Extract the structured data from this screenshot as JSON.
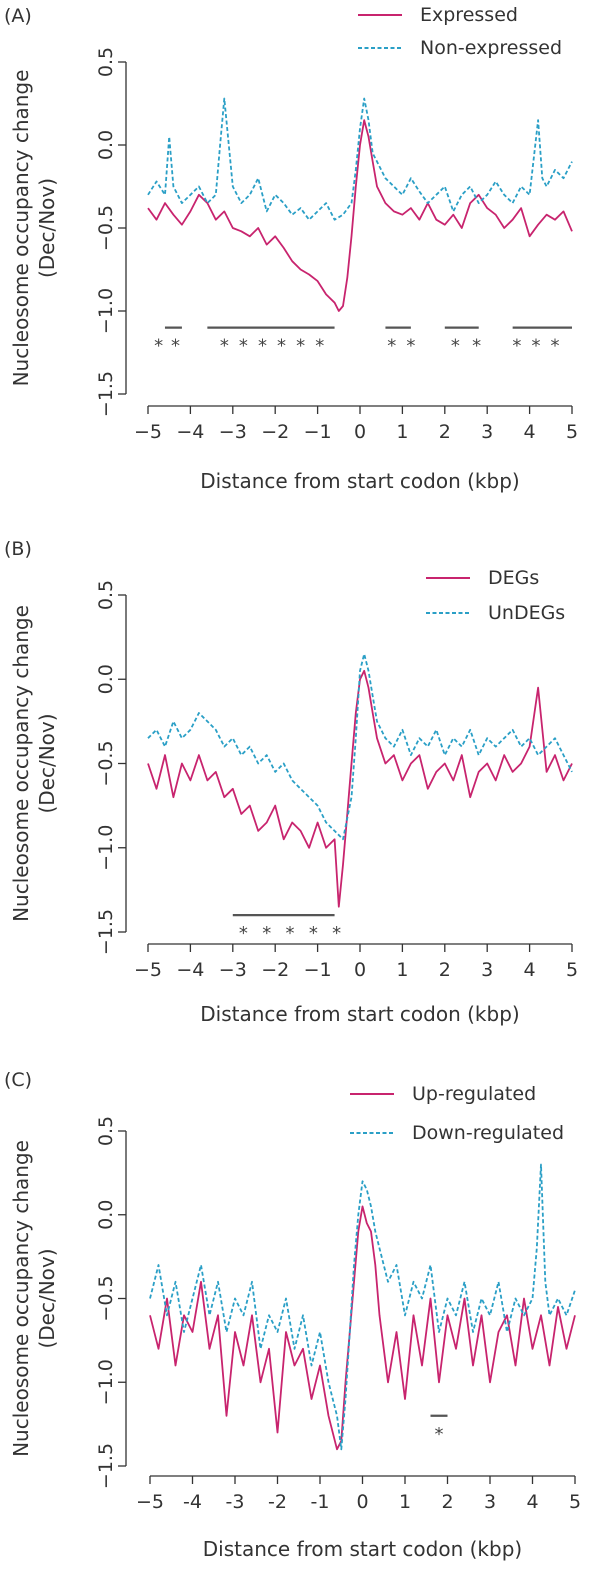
{
  "colors": {
    "pink": "#c8246e",
    "blue": "#2a9fc6",
    "ink": "#333333",
    "sig": "#555555"
  },
  "chart_data": [
    {
      "type": "line",
      "panel_label": "(A)",
      "ylabel_line1": "Nucleosome occupancy change",
      "ylabel_line2": "(Dec/Nov)",
      "xlabel": "Distance from start codon (kbp)",
      "xlim": [
        -5,
        5
      ],
      "ylim": [
        -1.5,
        0.5
      ],
      "xticks": [
        -5,
        -4,
        -3,
        -2,
        -1,
        0,
        1,
        2,
        3,
        4,
        5
      ],
      "xtick_labels": [
        "−5",
        "−4",
        "−3",
        "−2",
        "−1",
        "0",
        "1",
        "2",
        "3",
        "4",
        "5"
      ],
      "yticks": [
        -1.5,
        -1.0,
        -0.5,
        0.0,
        0.5
      ],
      "ytick_labels": [
        "−1.5",
        "−1.0",
        "−0.5",
        "0.0",
        "0.5"
      ],
      "series": [
        {
          "name": "Expressed",
          "style": "solid",
          "color": "#c8246e",
          "x": [
            -5,
            -4.8,
            -4.6,
            -4.4,
            -4.2,
            -4,
            -3.8,
            -3.6,
            -3.4,
            -3.2,
            -3,
            -2.8,
            -2.6,
            -2.4,
            -2.2,
            -2,
            -1.8,
            -1.6,
            -1.4,
            -1.2,
            -1,
            -0.8,
            -0.6,
            -0.5,
            -0.4,
            -0.3,
            -0.2,
            -0.1,
            0,
            0.1,
            0.2,
            0.3,
            0.4,
            0.6,
            0.8,
            1,
            1.2,
            1.4,
            1.6,
            1.8,
            2,
            2.2,
            2.4,
            2.6,
            2.8,
            3,
            3.2,
            3.4,
            3.6,
            3.8,
            4,
            4.2,
            4.4,
            4.6,
            4.8,
            5
          ],
          "y": [
            -0.38,
            -0.45,
            -0.35,
            -0.42,
            -0.48,
            -0.4,
            -0.3,
            -0.35,
            -0.45,
            -0.4,
            -0.5,
            -0.52,
            -0.55,
            -0.5,
            -0.6,
            -0.55,
            -0.62,
            -0.7,
            -0.75,
            -0.78,
            -0.82,
            -0.9,
            -0.95,
            -1.0,
            -0.97,
            -0.8,
            -0.55,
            -0.25,
            0.0,
            0.15,
            0.05,
            -0.1,
            -0.25,
            -0.35,
            -0.4,
            -0.42,
            -0.38,
            -0.45,
            -0.35,
            -0.45,
            -0.48,
            -0.42,
            -0.5,
            -0.35,
            -0.3,
            -0.38,
            -0.42,
            -0.5,
            -0.45,
            -0.38,
            -0.55,
            -0.48,
            -0.42,
            -0.45,
            -0.4,
            -0.52
          ]
        },
        {
          "name": "Non-expressed",
          "style": "dashed",
          "color": "#2a9fc6",
          "x": [
            -5,
            -4.8,
            -4.6,
            -4.5,
            -4.4,
            -4.2,
            -4,
            -3.8,
            -3.6,
            -3.4,
            -3.3,
            -3.2,
            -3,
            -2.8,
            -2.6,
            -2.4,
            -2.2,
            -2,
            -1.8,
            -1.6,
            -1.4,
            -1.2,
            -1,
            -0.8,
            -0.6,
            -0.4,
            -0.2,
            -0.1,
            0,
            0.1,
            0.2,
            0.3,
            0.4,
            0.6,
            0.8,
            1,
            1.2,
            1.4,
            1.6,
            1.8,
            2,
            2.2,
            2.4,
            2.6,
            2.8,
            3,
            3.2,
            3.4,
            3.6,
            3.8,
            4,
            4.2,
            4.3,
            4.4,
            4.6,
            4.8,
            5
          ],
          "y": [
            -0.3,
            -0.22,
            -0.3,
            0.05,
            -0.25,
            -0.35,
            -0.3,
            -0.25,
            -0.35,
            -0.3,
            0.0,
            0.28,
            -0.25,
            -0.35,
            -0.3,
            -0.2,
            -0.4,
            -0.3,
            -0.35,
            -0.42,
            -0.38,
            -0.45,
            -0.4,
            -0.35,
            -0.45,
            -0.42,
            -0.35,
            -0.15,
            0.1,
            0.28,
            0.15,
            -0.05,
            -0.1,
            -0.2,
            -0.25,
            -0.3,
            -0.2,
            -0.28,
            -0.35,
            -0.3,
            -0.25,
            -0.4,
            -0.3,
            -0.25,
            -0.35,
            -0.3,
            -0.22,
            -0.3,
            -0.35,
            -0.25,
            -0.3,
            0.15,
            -0.2,
            -0.25,
            -0.15,
            -0.2,
            -0.1
          ]
        }
      ],
      "legend_position": "top-right",
      "significance": {
        "marker": "*",
        "y": -1.1,
        "segments": [
          [
            -4.6,
            -4.2
          ],
          [
            -3.6,
            -0.6
          ],
          [
            0.6,
            1.2
          ],
          [
            2.0,
            2.8
          ],
          [
            3.6,
            5.0
          ]
        ],
        "stars_x": [
          -4.75,
          -4.35,
          -3.2,
          -2.75,
          -2.3,
          -1.85,
          -1.4,
          -0.95,
          0.75,
          1.2,
          2.25,
          2.75,
          3.7,
          4.15,
          4.6
        ]
      }
    },
    {
      "type": "line",
      "panel_label": "(B)",
      "ylabel_line1": "Nucleosome occupancy change",
      "ylabel_line2": "(Dec/Nov)",
      "xlabel": "Distance from start codon (kbp)",
      "xlim": [
        -5,
        5
      ],
      "ylim": [
        -1.5,
        0.5
      ],
      "xticks": [
        -5,
        -4,
        -3,
        -2,
        -1,
        0,
        1,
        2,
        3,
        4,
        5
      ],
      "xtick_labels": [
        "−5",
        "−4",
        "−3",
        "−2",
        "−1",
        "0",
        "1",
        "2",
        "3",
        "4",
        "5"
      ],
      "yticks": [
        -1.5,
        -1.0,
        -0.5,
        0.0,
        0.5
      ],
      "ytick_labels": [
        "−1.5",
        "−1.0",
        "−0.5",
        "0.0",
        "0.5"
      ],
      "series": [
        {
          "name": "DEGs",
          "style": "solid",
          "color": "#c8246e",
          "x": [
            -5,
            -4.8,
            -4.6,
            -4.4,
            -4.2,
            -4,
            -3.8,
            -3.6,
            -3.4,
            -3.2,
            -3,
            -2.8,
            -2.6,
            -2.4,
            -2.2,
            -2,
            -1.8,
            -1.6,
            -1.4,
            -1.2,
            -1,
            -0.8,
            -0.6,
            -0.5,
            -0.4,
            -0.3,
            -0.2,
            -0.1,
            0,
            0.1,
            0.2,
            0.3,
            0.4,
            0.6,
            0.8,
            1,
            1.2,
            1.4,
            1.6,
            1.8,
            2,
            2.2,
            2.4,
            2.6,
            2.8,
            3,
            3.2,
            3.4,
            3.6,
            3.8,
            4,
            4.2,
            4.4,
            4.6,
            4.8,
            5
          ],
          "y": [
            -0.5,
            -0.65,
            -0.45,
            -0.7,
            -0.5,
            -0.6,
            -0.45,
            -0.6,
            -0.55,
            -0.7,
            -0.65,
            -0.8,
            -0.75,
            -0.9,
            -0.85,
            -0.75,
            -0.95,
            -0.85,
            -0.9,
            -1.0,
            -0.85,
            -1.0,
            -0.95,
            -1.35,
            -1.1,
            -0.8,
            -0.5,
            -0.2,
            0.0,
            0.05,
            -0.05,
            -0.2,
            -0.35,
            -0.5,
            -0.45,
            -0.6,
            -0.5,
            -0.45,
            -0.65,
            -0.55,
            -0.5,
            -0.6,
            -0.45,
            -0.7,
            -0.55,
            -0.5,
            -0.6,
            -0.45,
            -0.55,
            -0.5,
            -0.4,
            -0.05,
            -0.55,
            -0.45,
            -0.6,
            -0.5
          ]
        },
        {
          "name": "UnDEGs",
          "style": "dashed",
          "color": "#2a9fc6",
          "x": [
            -5,
            -4.8,
            -4.6,
            -4.4,
            -4.2,
            -4,
            -3.8,
            -3.6,
            -3.4,
            -3.2,
            -3,
            -2.8,
            -2.6,
            -2.4,
            -2.2,
            -2,
            -1.8,
            -1.6,
            -1.4,
            -1.2,
            -1,
            -0.8,
            -0.6,
            -0.4,
            -0.2,
            -0.1,
            0,
            0.1,
            0.2,
            0.3,
            0.4,
            0.6,
            0.8,
            1,
            1.2,
            1.4,
            1.6,
            1.8,
            2,
            2.2,
            2.4,
            2.6,
            2.8,
            3,
            3.2,
            3.4,
            3.6,
            3.8,
            4,
            4.2,
            4.4,
            4.6,
            4.8,
            5
          ],
          "y": [
            -0.35,
            -0.3,
            -0.4,
            -0.25,
            -0.35,
            -0.3,
            -0.2,
            -0.25,
            -0.3,
            -0.4,
            -0.35,
            -0.45,
            -0.4,
            -0.5,
            -0.45,
            -0.55,
            -0.5,
            -0.6,
            -0.65,
            -0.7,
            -0.75,
            -0.85,
            -0.9,
            -0.95,
            -0.7,
            -0.35,
            0.05,
            0.15,
            0.05,
            -0.1,
            -0.25,
            -0.35,
            -0.4,
            -0.3,
            -0.45,
            -0.35,
            -0.4,
            -0.3,
            -0.45,
            -0.35,
            -0.4,
            -0.3,
            -0.45,
            -0.35,
            -0.4,
            -0.35,
            -0.3,
            -0.4,
            -0.35,
            -0.45,
            -0.4,
            -0.35,
            -0.45,
            -0.55
          ]
        }
      ],
      "legend_position": "top-right",
      "significance": {
        "marker": "*",
        "y": -1.4,
        "segments": [
          [
            -3.0,
            -0.6
          ]
        ],
        "stars_x": [
          -2.75,
          -2.2,
          -1.65,
          -1.1,
          -0.55
        ]
      }
    },
    {
      "type": "line",
      "panel_label": "(C)",
      "ylabel_line1": "Nucleosome occupancy change",
      "ylabel_line2": "(Dec/Nov)",
      "xlabel": "Distance from start codon (kbp)",
      "xlim": [
        -5,
        5
      ],
      "ylim": [
        -1.5,
        0.5
      ],
      "xticks": [
        -5,
        -4,
        -3,
        -2,
        -1,
        0,
        1,
        2,
        3,
        4,
        5
      ],
      "xtick_labels": [
        "−5",
        "-4",
        "-3",
        "-2",
        "-1",
        "0",
        "1",
        "2",
        "3",
        "4",
        "5"
      ],
      "yticks": [
        -1.5,
        -1.0,
        -0.5,
        0.0,
        0.5
      ],
      "ytick_labels": [
        "−1.5",
        "−1.0",
        "−0.5",
        "0.0",
        "0.5"
      ],
      "series": [
        {
          "name": "Up-regulated",
          "style": "solid",
          "color": "#c8246e",
          "x": [
            -5,
            -4.8,
            -4.6,
            -4.4,
            -4.2,
            -4,
            -3.8,
            -3.6,
            -3.4,
            -3.2,
            -3,
            -2.8,
            -2.6,
            -2.4,
            -2.2,
            -2,
            -1.8,
            -1.6,
            -1.4,
            -1.2,
            -1,
            -0.8,
            -0.6,
            -0.5,
            -0.4,
            -0.3,
            -0.2,
            -0.1,
            0,
            0.1,
            0.2,
            0.3,
            0.4,
            0.6,
            0.8,
            1,
            1.2,
            1.4,
            1.6,
            1.8,
            2,
            2.2,
            2.4,
            2.6,
            2.8,
            3,
            3.2,
            3.4,
            3.6,
            3.8,
            4,
            4.2,
            4.4,
            4.6,
            4.8,
            5
          ],
          "y": [
            -0.6,
            -0.8,
            -0.5,
            -0.9,
            -0.6,
            -0.7,
            -0.4,
            -0.8,
            -0.6,
            -1.2,
            -0.7,
            -0.9,
            -0.6,
            -1.0,
            -0.8,
            -1.3,
            -0.7,
            -0.9,
            -0.8,
            -1.1,
            -0.9,
            -1.2,
            -1.4,
            -1.35,
            -1.0,
            -0.7,
            -0.4,
            -0.1,
            0.05,
            -0.05,
            -0.1,
            -0.3,
            -0.6,
            -1.0,
            -0.7,
            -1.1,
            -0.6,
            -0.9,
            -0.5,
            -1.0,
            -0.6,
            -0.8,
            -0.5,
            -0.9,
            -0.6,
            -1.0,
            -0.7,
            -0.6,
            -0.9,
            -0.5,
            -0.8,
            -0.6,
            -0.9,
            -0.55,
            -0.8,
            -0.6
          ]
        },
        {
          "name": "Down-regulated",
          "style": "dashed",
          "color": "#2a9fc6",
          "x": [
            -5,
            -4.8,
            -4.6,
            -4.4,
            -4.2,
            -4,
            -3.8,
            -3.6,
            -3.4,
            -3.2,
            -3,
            -2.8,
            -2.6,
            -2.4,
            -2.2,
            -2,
            -1.8,
            -1.6,
            -1.4,
            -1.2,
            -1,
            -0.8,
            -0.6,
            -0.5,
            -0.4,
            -0.3,
            -0.2,
            -0.1,
            0,
            0.1,
            0.2,
            0.3,
            0.4,
            0.6,
            0.8,
            1,
            1.2,
            1.4,
            1.6,
            1.8,
            2,
            2.2,
            2.4,
            2.6,
            2.8,
            3,
            3.2,
            3.4,
            3.6,
            3.8,
            4,
            4.1,
            4.2,
            4.3,
            4.4,
            4.6,
            4.8,
            5
          ],
          "y": [
            -0.5,
            -0.3,
            -0.6,
            -0.4,
            -0.7,
            -0.5,
            -0.3,
            -0.6,
            -0.4,
            -0.7,
            -0.5,
            -0.6,
            -0.4,
            -0.8,
            -0.6,
            -0.7,
            -0.5,
            -0.8,
            -0.6,
            -0.9,
            -0.7,
            -1.0,
            -1.2,
            -1.4,
            -1.1,
            -0.7,
            -0.3,
            0.0,
            0.2,
            0.15,
            0.05,
            -0.1,
            -0.2,
            -0.4,
            -0.3,
            -0.6,
            -0.4,
            -0.5,
            -0.3,
            -0.7,
            -0.5,
            -0.6,
            -0.4,
            -0.7,
            -0.5,
            -0.6,
            -0.4,
            -0.7,
            -0.5,
            -0.6,
            -0.5,
            -0.2,
            0.3,
            -0.4,
            -0.6,
            -0.5,
            -0.6,
            -0.45
          ]
        }
      ],
      "legend_position": "top-right",
      "significance": {
        "marker": "*",
        "y": -1.2,
        "segments": [
          [
            1.6,
            2.0
          ]
        ],
        "stars_x": [
          1.8
        ]
      }
    }
  ]
}
